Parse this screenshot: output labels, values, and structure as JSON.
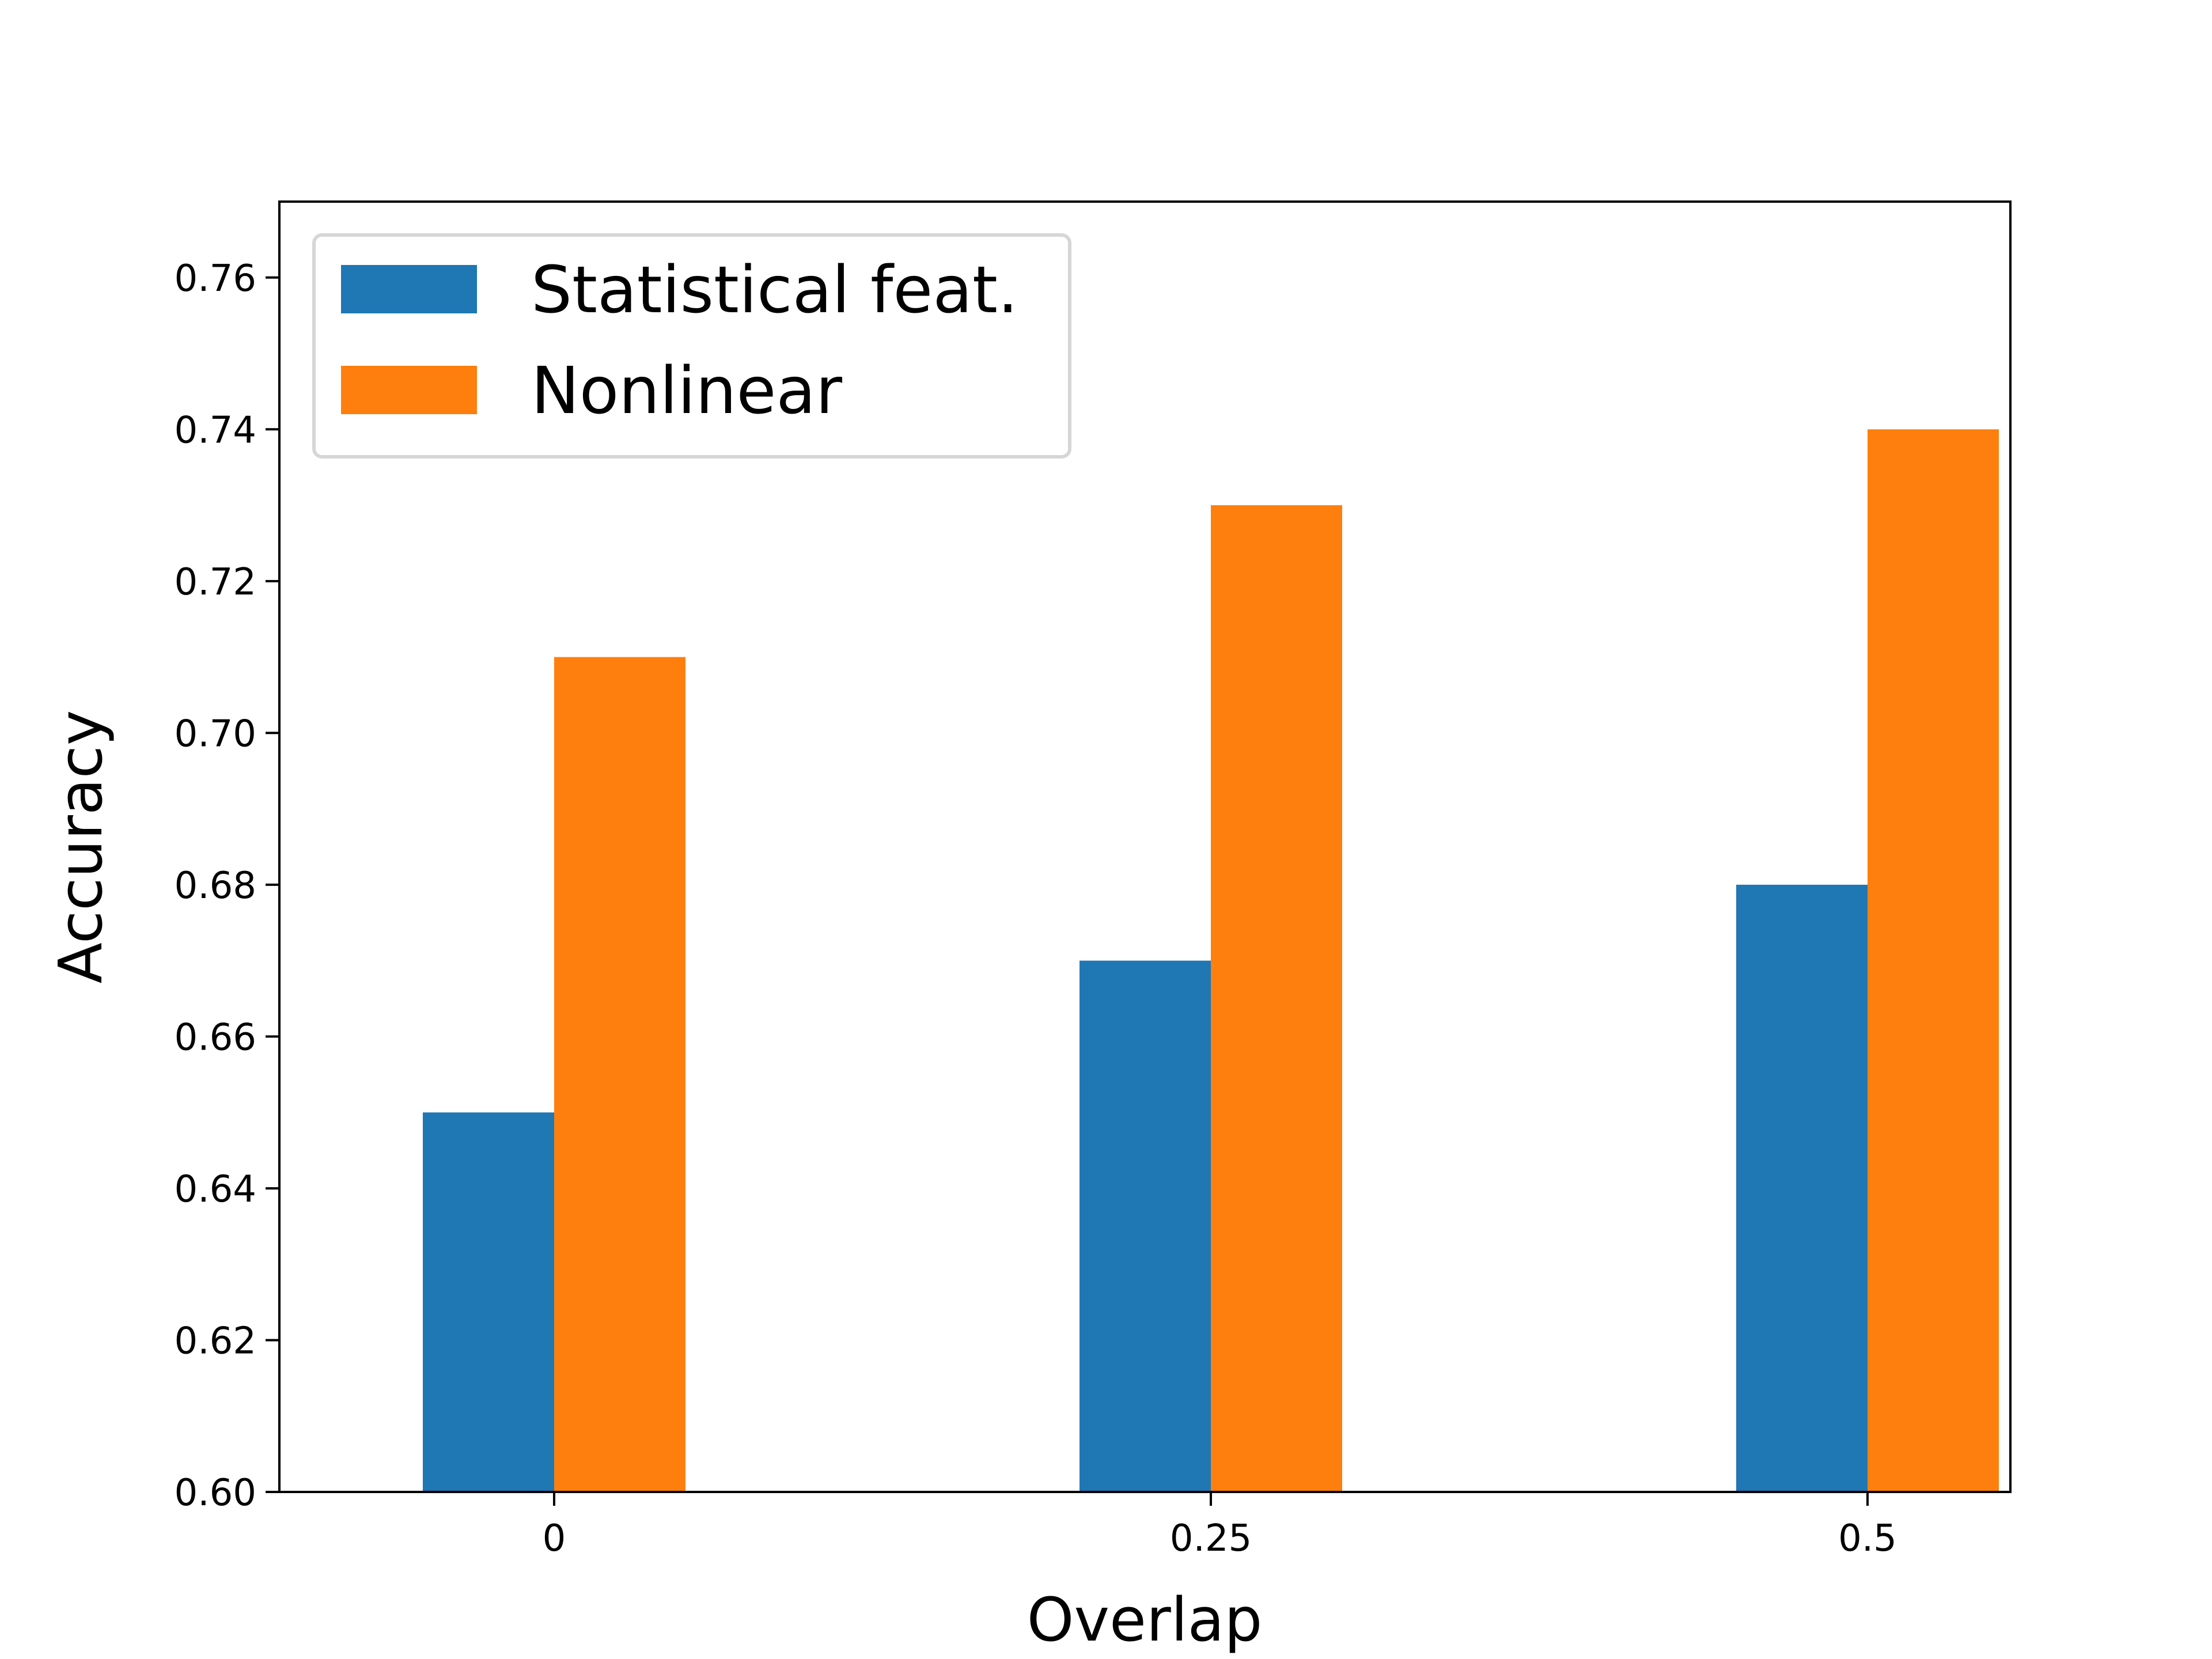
{
  "chart_data": {
    "type": "bar",
    "title": "",
    "xlabel": "Overlap",
    "ylabel": "Accuracy",
    "categories": [
      "0",
      "0.25",
      "0.5"
    ],
    "series": [
      {
        "name": "Statistical feat.",
        "color": "#1f77b4",
        "values": [
          0.65,
          0.67,
          0.68
        ]
      },
      {
        "name": "Nonlinear",
        "color": "#ff7f0e",
        "values": [
          0.71,
          0.73,
          0.74
        ]
      }
    ],
    "ylim": [
      0.6,
      0.77
    ],
    "yticks": [
      "0.60",
      "0.62",
      "0.64",
      "0.66",
      "0.68",
      "0.70",
      "0.72",
      "0.74",
      "0.76"
    ],
    "grid": false,
    "legend_position": "upper-left"
  }
}
